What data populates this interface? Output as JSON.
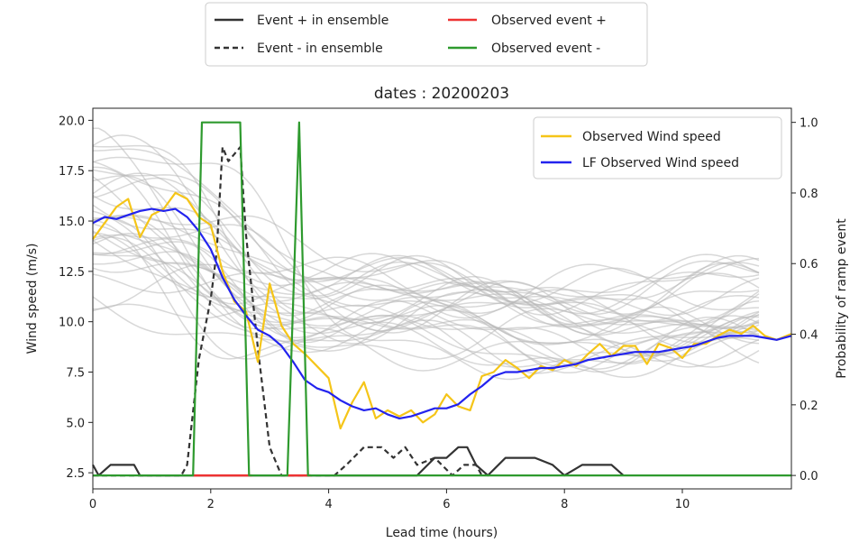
{
  "chart_data": {
    "type": "line",
    "title": "dates : 20200203",
    "xlabel": "Lead time (hours)",
    "ylabel": "Wind speed (m/s)",
    "ylabel_right": "Probability of ramp event",
    "xlim": [
      0,
      11.85
    ],
    "ylim": [
      1.7,
      20.6
    ],
    "ylim_right": [
      -0.038,
      1.04
    ],
    "x_ticks": [
      "0",
      "2",
      "4",
      "6",
      "8",
      "10"
    ],
    "y_ticks": [
      "2.5",
      "5.0",
      "7.5",
      "10.0",
      "12.5",
      "15.0",
      "17.5",
      "20.0"
    ],
    "y_ticks_right": [
      "0.0",
      "0.2",
      "0.4",
      "0.6",
      "0.8",
      "1.0"
    ],
    "grid": false,
    "top_legend": {
      "placement": "top-center",
      "entries": [
        {
          "label": "Event + in ensemble",
          "color": "#333333",
          "style": "solid"
        },
        {
          "label": "Observed event +",
          "color": "#ee3333",
          "style": "solid"
        },
        {
          "label": "Event - in ensemble",
          "color": "#333333",
          "style": "dashed"
        },
        {
          "label": "Observed event -",
          "color": "#2e9a2e",
          "style": "solid"
        }
      ]
    },
    "inner_legend": {
      "placement": "top-right",
      "entries": [
        {
          "label": "Observed Wind speed",
          "color": "#f5c518"
        },
        {
          "label": "LF Observed Wind speed",
          "color": "#2323ee"
        }
      ]
    },
    "series": [
      {
        "name": "Observed Wind speed",
        "axis": "left",
        "color": "#f5c518",
        "x": [
          0,
          0.2,
          0.4,
          0.6,
          0.8,
          1.0,
          1.2,
          1.4,
          1.6,
          1.8,
          2.0,
          2.2,
          2.4,
          2.6,
          2.8,
          3.0,
          3.2,
          3.4,
          3.6,
          3.8,
          4.0,
          4.2,
          4.4,
          4.6,
          4.8,
          5.0,
          5.2,
          5.4,
          5.6,
          5.8,
          6.0,
          6.2,
          6.4,
          6.6,
          6.8,
          7.0,
          7.2,
          7.4,
          7.6,
          7.8,
          8.0,
          8.2,
          8.4,
          8.6,
          8.8,
          9.0,
          9.2,
          9.4,
          9.6,
          9.8,
          10.0,
          10.2,
          10.4,
          10.6,
          10.8,
          11.0,
          11.2,
          11.4,
          11.6,
          11.85
        ],
        "values": [
          14.1,
          14.9,
          15.7,
          16.1,
          14.2,
          15.3,
          15.6,
          16.4,
          16.1,
          15.2,
          14.8,
          12.5,
          11.0,
          10.5,
          8.0,
          11.9,
          9.8,
          8.9,
          8.4,
          7.8,
          7.2,
          4.7,
          6.0,
          7.0,
          5.2,
          5.6,
          5.3,
          5.6,
          5.0,
          5.4,
          6.4,
          5.8,
          5.6,
          7.3,
          7.5,
          8.1,
          7.7,
          7.2,
          7.8,
          7.6,
          8.1,
          7.8,
          8.4,
          8.9,
          8.3,
          8.8,
          8.8,
          7.9,
          8.9,
          8.7,
          8.2,
          8.9,
          8.9,
          9.3,
          9.6,
          9.4,
          9.8,
          9.3,
          9.1,
          9.4
        ]
      },
      {
        "name": "LF Observed Wind speed",
        "axis": "left",
        "color": "#2323ee",
        "x": [
          0,
          0.2,
          0.4,
          0.6,
          0.8,
          1.0,
          1.2,
          1.4,
          1.6,
          1.8,
          2.0,
          2.2,
          2.4,
          2.6,
          2.8,
          3.0,
          3.2,
          3.4,
          3.6,
          3.8,
          4.0,
          4.2,
          4.4,
          4.6,
          4.8,
          5.0,
          5.2,
          5.4,
          5.6,
          5.8,
          6.0,
          6.2,
          6.4,
          6.6,
          6.8,
          7.0,
          7.2,
          7.4,
          7.6,
          7.8,
          8.0,
          8.2,
          8.4,
          8.6,
          8.8,
          9.0,
          9.2,
          9.4,
          9.6,
          9.8,
          10.0,
          10.2,
          10.4,
          10.6,
          10.8,
          11.0,
          11.2,
          11.4,
          11.6,
          11.85
        ],
        "values": [
          14.9,
          15.2,
          15.1,
          15.3,
          15.5,
          15.6,
          15.5,
          15.6,
          15.2,
          14.5,
          13.6,
          12.2,
          11.1,
          10.3,
          9.6,
          9.3,
          8.8,
          8.0,
          7.1,
          6.7,
          6.5,
          6.1,
          5.8,
          5.6,
          5.7,
          5.4,
          5.2,
          5.3,
          5.5,
          5.7,
          5.7,
          5.9,
          6.4,
          6.8,
          7.3,
          7.5,
          7.5,
          7.6,
          7.7,
          7.7,
          7.8,
          7.9,
          8.1,
          8.2,
          8.3,
          8.4,
          8.5,
          8.5,
          8.5,
          8.6,
          8.7,
          8.8,
          9.0,
          9.2,
          9.3,
          9.3,
          9.3,
          9.2,
          9.1,
          9.3
        ]
      },
      {
        "name": "Event + in ensemble",
        "axis": "right",
        "color": "#333333",
        "x": [
          0,
          0.1,
          0.3,
          0.7,
          0.8,
          1.0,
          5.5,
          5.8,
          6.0,
          6.2,
          6.35,
          6.5,
          6.7,
          7.0,
          7.5,
          7.8,
          8.0,
          8.3,
          8.8,
          9.0
        ],
        "values": [
          0.03,
          0.0,
          0.03,
          0.03,
          0.0,
          0.0,
          0.0,
          0.05,
          0.05,
          0.08,
          0.08,
          0.03,
          0.0,
          0.05,
          0.05,
          0.03,
          0.0,
          0.03,
          0.03,
          0.0
        ]
      },
      {
        "name": "Event - in ensemble",
        "axis": "right",
        "color": "#333333",
        "x": [
          0,
          1.5,
          1.6,
          1.8,
          2.0,
          2.1,
          2.2,
          2.3,
          2.5,
          2.6,
          2.8,
          3.0,
          3.2,
          4.1,
          4.3,
          4.6,
          4.9,
          5.1,
          5.3,
          5.5,
          5.8,
          6.1,
          6.3,
          6.5,
          6.6
        ],
        "values": [
          0.0,
          0.0,
          0.03,
          0.33,
          0.5,
          0.63,
          0.93,
          0.89,
          0.93,
          0.68,
          0.36,
          0.08,
          0.0,
          0.0,
          0.03,
          0.08,
          0.08,
          0.05,
          0.08,
          0.03,
          0.05,
          0.0,
          0.03,
          0.03,
          0.0
        ]
      },
      {
        "name": "Observed event +",
        "axis": "right",
        "color": "#ee3333",
        "x": [
          1.7,
          2.7,
          3.3,
          3.7
        ],
        "values": [
          0.0,
          0.0,
          0.0,
          0.0
        ]
      },
      {
        "name": "Observed event -",
        "axis": "right",
        "color": "#2e9a2e",
        "x": [
          0,
          1.7,
          1.85,
          2.5,
          2.65,
          3.3,
          3.5,
          3.65,
          11.85
        ],
        "values": [
          0.0,
          0.0,
          1.0,
          1.0,
          0.0,
          0.0,
          1.0,
          0.0,
          0.0
        ]
      }
    ]
  }
}
